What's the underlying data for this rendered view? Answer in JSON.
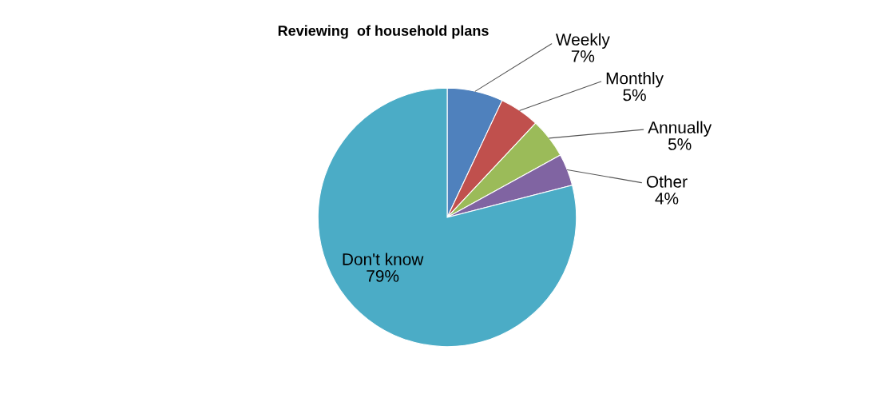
{
  "chart_data": {
    "type": "pie",
    "title": "Reviewing  of household plans",
    "categories": [
      "Weekly",
      "Monthly",
      "Annually",
      "Other",
      "Don't know"
    ],
    "values": [
      7,
      5,
      5,
      4,
      79
    ],
    "value_labels": [
      "7%",
      "5%",
      "5%",
      "4%",
      "79%"
    ],
    "colors": [
      "#4f81bd",
      "#c0504d",
      "#9bbb59",
      "#8064a2",
      "#4bacc6"
    ]
  }
}
